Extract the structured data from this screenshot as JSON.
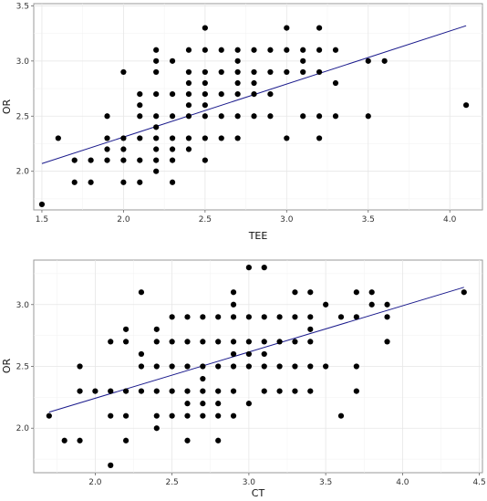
{
  "chart_data": [
    {
      "type": "scatter",
      "title": "",
      "xlabel": "TEE",
      "ylabel": "OR",
      "xlim": [
        1.45,
        4.2
      ],
      "ylim": [
        1.65,
        3.52
      ],
      "xticks": [
        "1.5",
        "2.0",
        "2.5",
        "3.0",
        "3.5",
        "4.0"
      ],
      "yticks": [
        "2.0",
        "2.5",
        "3.0",
        "3.5"
      ],
      "x_tick_values": [
        1.5,
        2.0,
        2.5,
        3.0,
        3.5,
        4.0
      ],
      "y_tick_values": [
        2.0,
        2.5,
        3.0,
        3.5
      ],
      "grid": true,
      "fit_line": {
        "x": [
          1.5,
          4.1
        ],
        "y": [
          2.07,
          3.32
        ],
        "color": "#1a1a8c"
      },
      "points": [
        [
          1.5,
          1.7
        ],
        [
          1.6,
          2.3
        ],
        [
          1.7,
          2.1
        ],
        [
          1.7,
          1.9
        ],
        [
          1.8,
          2.1
        ],
        [
          1.8,
          1.9
        ],
        [
          1.9,
          2.5
        ],
        [
          1.9,
          2.3
        ],
        [
          1.9,
          2.2
        ],
        [
          1.9,
          2.1
        ],
        [
          2.0,
          2.9
        ],
        [
          2.0,
          2.3
        ],
        [
          2.0,
          2.2
        ],
        [
          2.0,
          2.1
        ],
        [
          2.0,
          1.9
        ],
        [
          2.1,
          2.7
        ],
        [
          2.1,
          2.6
        ],
        [
          2.1,
          2.5
        ],
        [
          2.1,
          2.3
        ],
        [
          2.1,
          2.1
        ],
        [
          2.1,
          1.9
        ],
        [
          2.2,
          3.1
        ],
        [
          2.2,
          3.0
        ],
        [
          2.2,
          2.9
        ],
        [
          2.2,
          2.7
        ],
        [
          2.2,
          2.5
        ],
        [
          2.2,
          2.4
        ],
        [
          2.2,
          2.3
        ],
        [
          2.2,
          2.2
        ],
        [
          2.2,
          2.1
        ],
        [
          2.2,
          2.0
        ],
        [
          2.3,
          3.0
        ],
        [
          2.3,
          2.7
        ],
        [
          2.3,
          2.5
        ],
        [
          2.3,
          2.3
        ],
        [
          2.3,
          2.2
        ],
        [
          2.3,
          2.1
        ],
        [
          2.3,
          1.9
        ],
        [
          2.4,
          3.1
        ],
        [
          2.4,
          2.9
        ],
        [
          2.4,
          2.8
        ],
        [
          2.4,
          2.7
        ],
        [
          2.4,
          2.6
        ],
        [
          2.4,
          2.5
        ],
        [
          2.4,
          2.3
        ],
        [
          2.4,
          2.2
        ],
        [
          2.5,
          3.3
        ],
        [
          2.5,
          3.1
        ],
        [
          2.5,
          2.9
        ],
        [
          2.5,
          2.8
        ],
        [
          2.5,
          2.7
        ],
        [
          2.5,
          2.6
        ],
        [
          2.5,
          2.5
        ],
        [
          2.5,
          2.3
        ],
        [
          2.5,
          2.1
        ],
        [
          2.6,
          3.1
        ],
        [
          2.6,
          2.9
        ],
        [
          2.6,
          2.7
        ],
        [
          2.6,
          2.5
        ],
        [
          2.6,
          2.3
        ],
        [
          2.7,
          3.1
        ],
        [
          2.7,
          3.0
        ],
        [
          2.7,
          2.9
        ],
        [
          2.7,
          2.8
        ],
        [
          2.7,
          2.7
        ],
        [
          2.7,
          2.5
        ],
        [
          2.7,
          2.3
        ],
        [
          2.8,
          3.1
        ],
        [
          2.8,
          2.9
        ],
        [
          2.8,
          2.8
        ],
        [
          2.8,
          2.7
        ],
        [
          2.8,
          2.5
        ],
        [
          2.9,
          3.1
        ],
        [
          2.9,
          2.9
        ],
        [
          2.9,
          2.7
        ],
        [
          2.9,
          2.5
        ],
        [
          3.0,
          3.3
        ],
        [
          3.0,
          3.1
        ],
        [
          3.0,
          2.9
        ],
        [
          3.0,
          2.3
        ],
        [
          3.1,
          3.1
        ],
        [
          3.1,
          3.0
        ],
        [
          3.1,
          2.9
        ],
        [
          3.1,
          2.5
        ],
        [
          3.2,
          3.3
        ],
        [
          3.2,
          3.1
        ],
        [
          3.2,
          2.9
        ],
        [
          3.2,
          2.5
        ],
        [
          3.2,
          2.3
        ],
        [
          3.3,
          3.1
        ],
        [
          3.3,
          2.8
        ],
        [
          3.3,
          2.5
        ],
        [
          3.5,
          3.0
        ],
        [
          3.5,
          2.5
        ],
        [
          3.6,
          3.0
        ],
        [
          4.1,
          2.6
        ]
      ]
    },
    {
      "type": "scatter",
      "title": "",
      "xlabel": "CT",
      "ylabel": "OR",
      "xlim": [
        1.6,
        4.52
      ],
      "ylim": [
        1.64,
        3.36
      ],
      "xticks": [
        "2.0",
        "2.5",
        "3.0",
        "3.5",
        "4.0",
        "4.5"
      ],
      "yticks": [
        "2.0",
        "2.5",
        "3.0"
      ],
      "x_tick_values": [
        2.0,
        2.5,
        3.0,
        3.5,
        4.0,
        4.5
      ],
      "y_tick_values": [
        2.0,
        2.5,
        3.0
      ],
      "grid": true,
      "fit_line": {
        "x": [
          1.7,
          4.4
        ],
        "y": [
          2.13,
          3.14
        ],
        "color": "#1a1a8c"
      },
      "points": [
        [
          1.7,
          2.1
        ],
        [
          1.8,
          1.9
        ],
        [
          1.9,
          2.5
        ],
        [
          1.9,
          2.3
        ],
        [
          1.9,
          1.9
        ],
        [
          2.0,
          2.3
        ],
        [
          2.1,
          2.7
        ],
        [
          2.1,
          2.3
        ],
        [
          2.1,
          2.1
        ],
        [
          2.1,
          1.7
        ],
        [
          2.2,
          2.8
        ],
        [
          2.2,
          2.7
        ],
        [
          2.2,
          2.3
        ],
        [
          2.2,
          2.1
        ],
        [
          2.2,
          1.9
        ],
        [
          2.3,
          3.1
        ],
        [
          2.3,
          2.6
        ],
        [
          2.3,
          2.5
        ],
        [
          2.3,
          2.3
        ],
        [
          2.4,
          2.8
        ],
        [
          2.4,
          2.7
        ],
        [
          2.4,
          2.5
        ],
        [
          2.4,
          2.3
        ],
        [
          2.4,
          2.1
        ],
        [
          2.4,
          2.0
        ],
        [
          2.5,
          2.9
        ],
        [
          2.5,
          2.7
        ],
        [
          2.5,
          2.5
        ],
        [
          2.5,
          2.3
        ],
        [
          2.5,
          2.1
        ],
        [
          2.6,
          2.9
        ],
        [
          2.6,
          2.7
        ],
        [
          2.6,
          2.5
        ],
        [
          2.6,
          2.3
        ],
        [
          2.6,
          2.2
        ],
        [
          2.6,
          2.1
        ],
        [
          2.6,
          1.9
        ],
        [
          2.7,
          2.9
        ],
        [
          2.7,
          2.7
        ],
        [
          2.7,
          2.5
        ],
        [
          2.7,
          2.4
        ],
        [
          2.7,
          2.3
        ],
        [
          2.7,
          2.2
        ],
        [
          2.7,
          2.1
        ],
        [
          2.8,
          2.9
        ],
        [
          2.8,
          2.7
        ],
        [
          2.8,
          2.5
        ],
        [
          2.8,
          2.3
        ],
        [
          2.8,
          2.2
        ],
        [
          2.8,
          2.1
        ],
        [
          2.8,
          1.9
        ],
        [
          2.9,
          3.1
        ],
        [
          2.9,
          3.0
        ],
        [
          2.9,
          2.9
        ],
        [
          2.9,
          2.7
        ],
        [
          2.9,
          2.6
        ],
        [
          2.9,
          2.5
        ],
        [
          2.9,
          2.3
        ],
        [
          2.9,
          2.1
        ],
        [
          3.0,
          3.3
        ],
        [
          3.0,
          2.9
        ],
        [
          3.0,
          2.7
        ],
        [
          3.0,
          2.6
        ],
        [
          3.0,
          2.5
        ],
        [
          3.0,
          2.2
        ],
        [
          3.1,
          3.3
        ],
        [
          3.1,
          2.9
        ],
        [
          3.1,
          2.7
        ],
        [
          3.1,
          2.6
        ],
        [
          3.1,
          2.5
        ],
        [
          3.1,
          2.3
        ],
        [
          3.2,
          2.9
        ],
        [
          3.2,
          2.7
        ],
        [
          3.2,
          2.5
        ],
        [
          3.2,
          2.3
        ],
        [
          3.3,
          3.1
        ],
        [
          3.3,
          2.9
        ],
        [
          3.3,
          2.7
        ],
        [
          3.3,
          2.5
        ],
        [
          3.3,
          2.3
        ],
        [
          3.4,
          3.1
        ],
        [
          3.4,
          2.9
        ],
        [
          3.4,
          2.8
        ],
        [
          3.4,
          2.7
        ],
        [
          3.4,
          2.5
        ],
        [
          3.4,
          2.3
        ],
        [
          3.5,
          3.0
        ],
        [
          3.5,
          2.5
        ],
        [
          3.6,
          2.9
        ],
        [
          3.6,
          2.1
        ],
        [
          3.7,
          3.1
        ],
        [
          3.7,
          2.9
        ],
        [
          3.7,
          2.5
        ],
        [
          3.7,
          2.3
        ],
        [
          3.8,
          3.1
        ],
        [
          3.8,
          3.0
        ],
        [
          3.9,
          3.0
        ],
        [
          3.9,
          2.9
        ],
        [
          3.9,
          2.7
        ],
        [
          4.4,
          3.1
        ]
      ]
    }
  ]
}
